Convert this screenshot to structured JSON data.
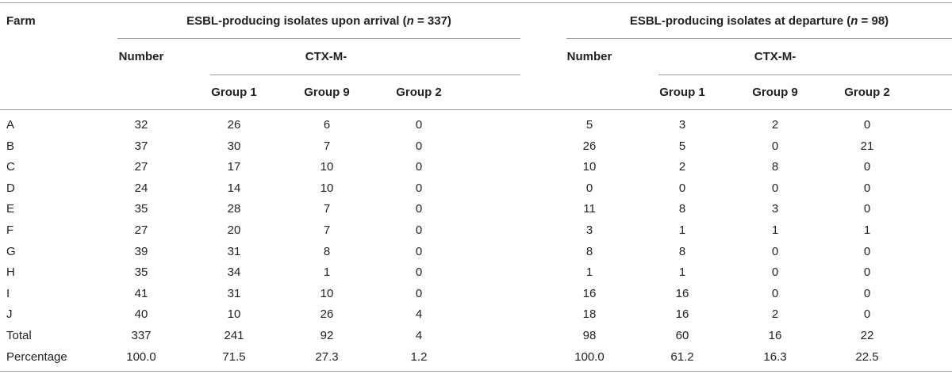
{
  "table": {
    "farm_header": "Farm",
    "arrival_title": {
      "pre": "ESBL-producing isolates upon arrival (",
      "n": "n",
      "post": " = 337)"
    },
    "departure_title": {
      "pre": "ESBL-producing isolates at departure (",
      "n": "n",
      "post": " = 98)"
    },
    "number_header": "Number",
    "ctx_header": "CTX-M-",
    "group_headers": [
      "Group 1",
      "Group 9",
      "Group 2"
    ],
    "rows": [
      {
        "farm": "A",
        "arrival": [
          "32",
          "26",
          "6",
          "0"
        ],
        "departure": [
          "5",
          "3",
          "2",
          "0"
        ]
      },
      {
        "farm": "B",
        "arrival": [
          "37",
          "30",
          "7",
          "0"
        ],
        "departure": [
          "26",
          "5",
          "0",
          "21"
        ]
      },
      {
        "farm": "C",
        "arrival": [
          "27",
          "17",
          "10",
          "0"
        ],
        "departure": [
          "10",
          "2",
          "8",
          "0"
        ]
      },
      {
        "farm": "D",
        "arrival": [
          "24",
          "14",
          "10",
          "0"
        ],
        "departure": [
          "0",
          "0",
          "0",
          "0"
        ]
      },
      {
        "farm": "E",
        "arrival": [
          "35",
          "28",
          "7",
          "0"
        ],
        "departure": [
          "11",
          "8",
          "3",
          "0"
        ]
      },
      {
        "farm": "F",
        "arrival": [
          "27",
          "20",
          "7",
          "0"
        ],
        "departure": [
          "3",
          "1",
          "1",
          "1"
        ]
      },
      {
        "farm": "G",
        "arrival": [
          "39",
          "31",
          "8",
          "0"
        ],
        "departure": [
          "8",
          "8",
          "0",
          "0"
        ]
      },
      {
        "farm": "H",
        "arrival": [
          "35",
          "34",
          "1",
          "0"
        ],
        "departure": [
          "1",
          "1",
          "0",
          "0"
        ]
      },
      {
        "farm": "I",
        "arrival": [
          "41",
          "31",
          "10",
          "0"
        ],
        "departure": [
          "16",
          "16",
          "0",
          "0"
        ]
      },
      {
        "farm": "J",
        "arrival": [
          "40",
          "10",
          "26",
          "4"
        ],
        "departure": [
          "18",
          "16",
          "2",
          "0"
        ]
      },
      {
        "farm": "Total",
        "arrival": [
          "337",
          "241",
          "92",
          "4"
        ],
        "departure": [
          "98",
          "60",
          "16",
          "22"
        ]
      },
      {
        "farm": "Percentage",
        "arrival": [
          "100.0",
          "71.5",
          "27.3",
          "1.2"
        ],
        "departure": [
          "100.0",
          "61.2",
          "16.3",
          "22.5"
        ]
      }
    ]
  }
}
